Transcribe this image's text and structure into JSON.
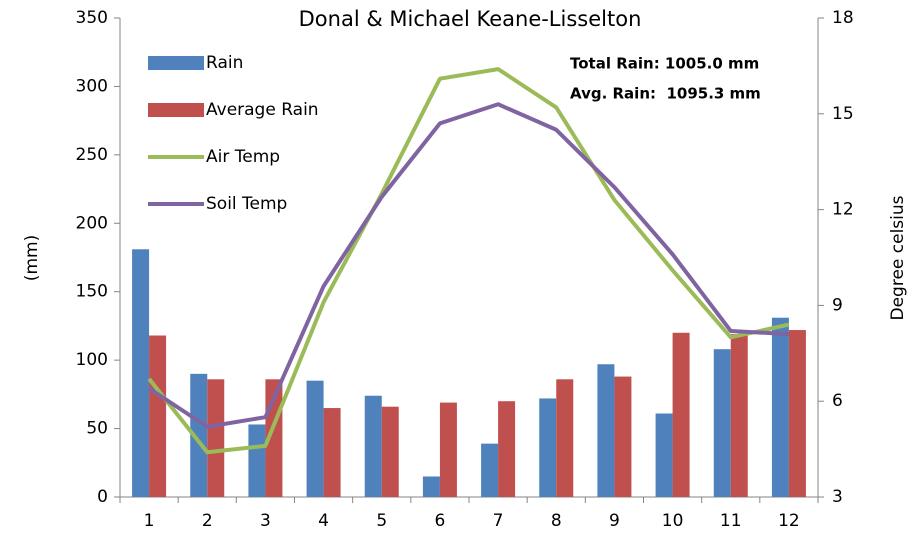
{
  "chart_data": {
    "type": "bar-line",
    "title": "Donal & Michael Keane-Lisselton",
    "ylabel": "(mm)",
    "y2label": "Degree celsius",
    "annotations": [
      "Total Rain: 1005.0 mm",
      "Avg. Rain:  1095.3 mm"
    ],
    "categories": [
      "1",
      "2",
      "3",
      "4",
      "5",
      "6",
      "7",
      "8",
      "9",
      "10",
      "11",
      "12"
    ],
    "series": [
      {
        "name": "Rain",
        "type": "bar",
        "color": "#4f81bd",
        "values": [
          181,
          90,
          53,
          85,
          74,
          15,
          39,
          72,
          97,
          61,
          108,
          131
        ]
      },
      {
        "name": "Average Rain",
        "type": "bar",
        "color": "#c0504d",
        "values": [
          118,
          86,
          86,
          65,
          66,
          69,
          70,
          86,
          88,
          120,
          119,
          122
        ]
      },
      {
        "name": "Air Temp",
        "type": "line",
        "axis": "y2",
        "color": "#9bbb59",
        "values": [
          6.7,
          4.4,
          4.6,
          9.1,
          12.5,
          16.1,
          16.4,
          15.2,
          12.3,
          10.1,
          8.0,
          8.4
        ]
      },
      {
        "name": "Soil Temp",
        "type": "line",
        "axis": "y2",
        "color": "#8064a2",
        "values": [
          6.4,
          5.2,
          5.5,
          9.6,
          12.4,
          14.7,
          15.3,
          14.5,
          12.7,
          10.6,
          8.2,
          8.1
        ]
      }
    ],
    "ylim": [
      0,
      350
    ],
    "yticks": [
      0,
      50,
      100,
      150,
      200,
      250,
      300,
      350
    ],
    "y2lim": [
      3,
      18
    ],
    "y2ticks": [
      3,
      6,
      9,
      12,
      15,
      18
    ],
    "legend": "upper left",
    "grid": false
  }
}
